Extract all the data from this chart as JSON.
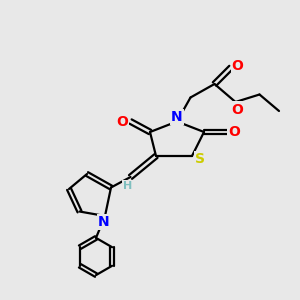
{
  "bg_color": "#e8e8e8",
  "bond_color": "#000000",
  "N_color": "#0000ff",
  "O_color": "#ff0000",
  "S_color": "#cccc00",
  "H_color": "#7fbfbf",
  "line_width": 1.6,
  "font_size": 10,
  "small_font_size": 8,
  "fig_width": 3.0,
  "fig_height": 3.0,
  "dpi": 100,
  "xlim": [
    0,
    10
  ],
  "ylim": [
    0,
    10
  ]
}
